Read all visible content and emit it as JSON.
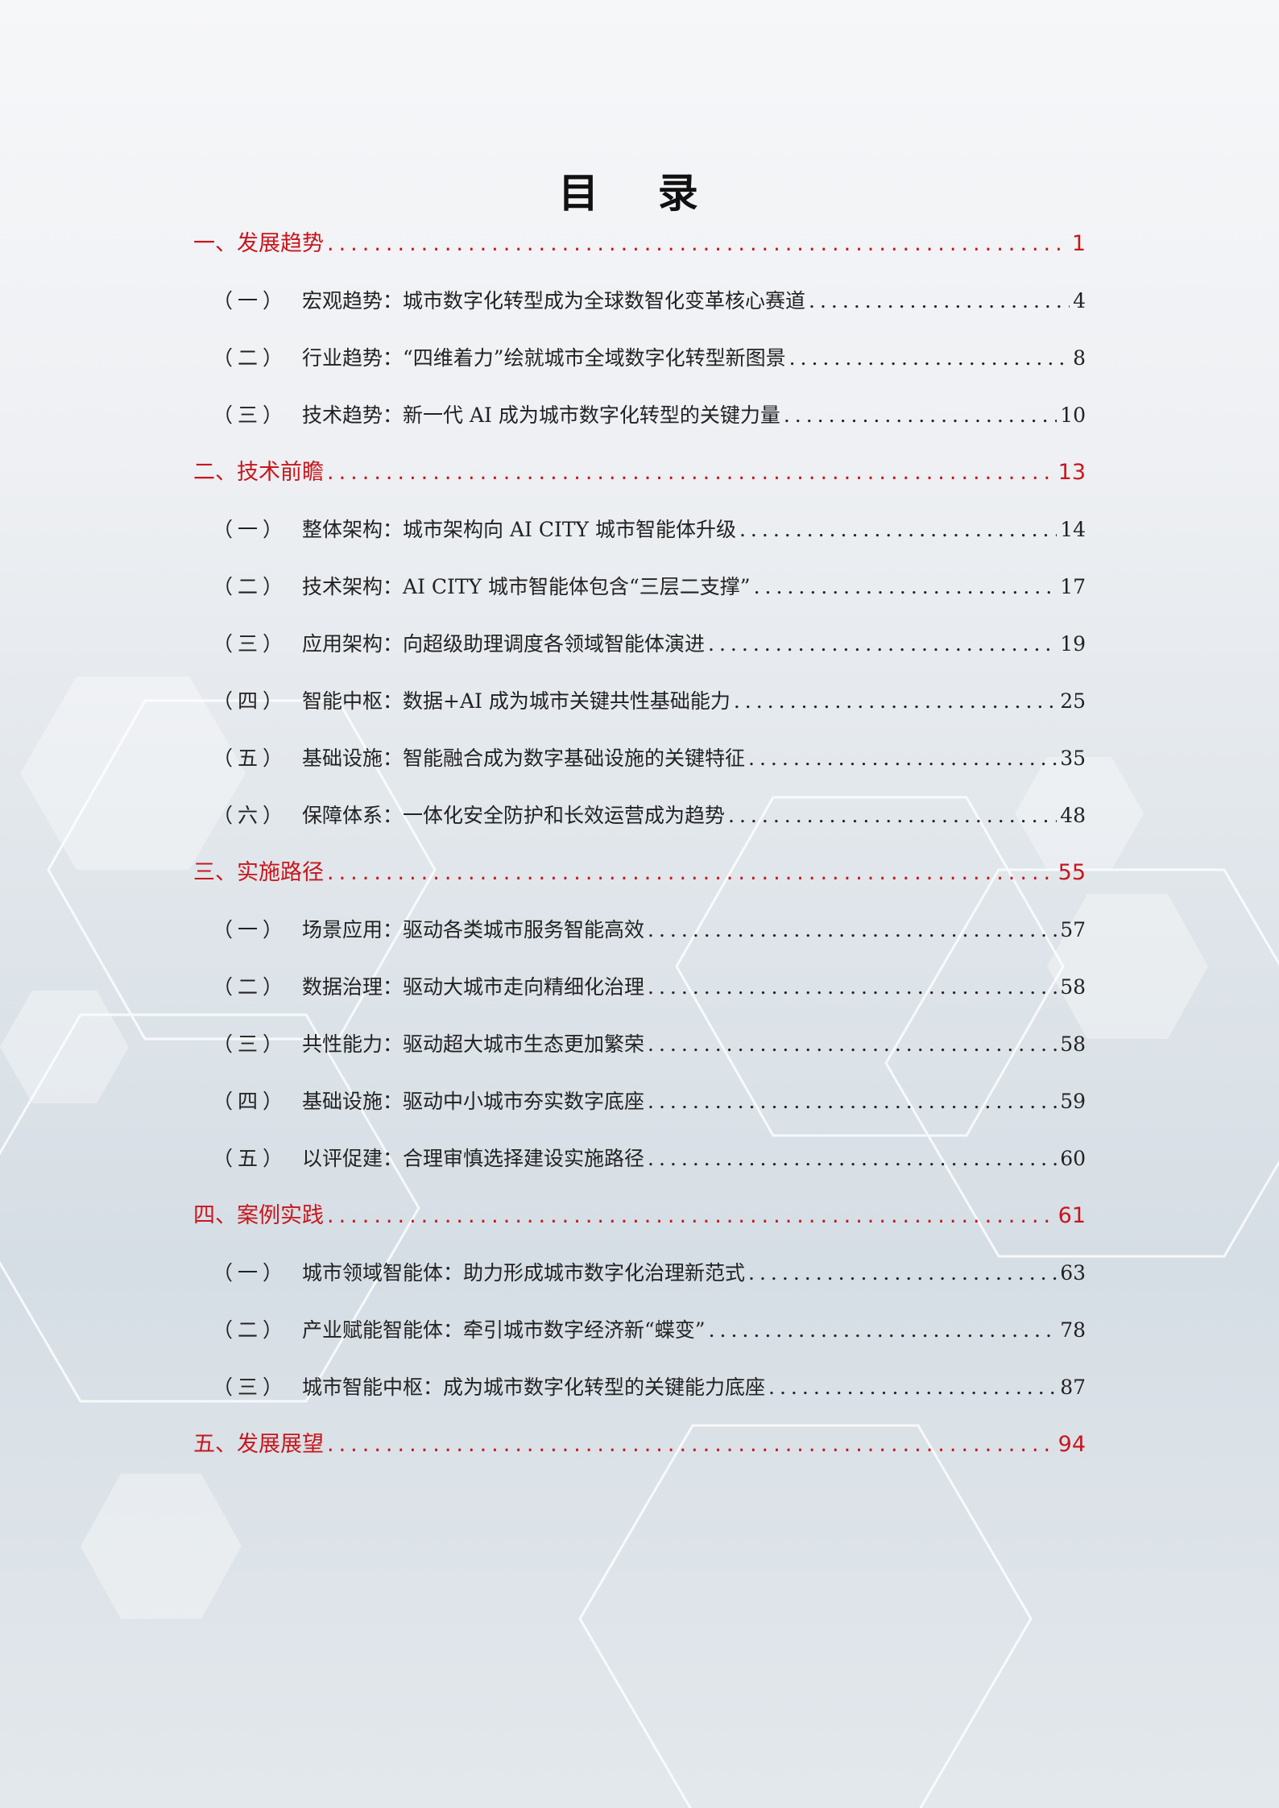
{
  "title": "目 录",
  "entries": [
    {
      "level": 1,
      "label": "一、发展趋势",
      "page": "1"
    },
    {
      "level": 2,
      "prefix": "（一）",
      "label": "宏观趋势：城市数字化转型成为全球数智化变革核心赛道",
      "page": "4"
    },
    {
      "level": 2,
      "prefix": "（二）",
      "label": "行业趋势：“四维着力”绘就城市全域数字化转型新图景",
      "page": "8"
    },
    {
      "level": 2,
      "prefix": "（三）",
      "label": "技术趋势：新一代 AI 成为城市数字化转型的关键力量",
      "page": "10"
    },
    {
      "level": 1,
      "label": "二、技术前瞻",
      "page": "13"
    },
    {
      "level": 2,
      "prefix": "（一）",
      "label": "整体架构：城市架构向 AI CITY 城市智能体升级",
      "page": "14"
    },
    {
      "level": 2,
      "prefix": "（二）",
      "label": "技术架构：AI CITY 城市智能体包含“三层二支撑”",
      "page": "17"
    },
    {
      "level": 2,
      "prefix": "（三）",
      "label": "应用架构：向超级助理调度各领域智能体演进",
      "page": "19"
    },
    {
      "level": 2,
      "prefix": "（四）",
      "label": "智能中枢：数据+AI 成为城市关键共性基础能力",
      "page": "25"
    },
    {
      "level": 2,
      "prefix": "（五）",
      "label": "基础设施：智能融合成为数字基础设施的关键特征",
      "page": "35"
    },
    {
      "level": 2,
      "prefix": "（六）",
      "label": "保障体系：一体化安全防护和长效运营成为趋势",
      "page": "48"
    },
    {
      "level": 1,
      "label": "三、实施路径",
      "page": "55"
    },
    {
      "level": 2,
      "prefix": "（一）",
      "label": "场景应用：驱动各类城市服务智能高效",
      "page": "57"
    },
    {
      "level": 2,
      "prefix": "（二）",
      "label": "数据治理：驱动大城市走向精细化治理",
      "page": "58"
    },
    {
      "level": 2,
      "prefix": "（三）",
      "label": "共性能力：驱动超大城市生态更加繁荣",
      "page": "58"
    },
    {
      "level": 2,
      "prefix": "（四）",
      "label": "基础设施：驱动中小城市夯实数字底座",
      "page": "59"
    },
    {
      "level": 2,
      "prefix": "（五）",
      "label": "以评促建：合理审慎选择建设实施路径",
      "page": "60"
    },
    {
      "level": 1,
      "label": "四、案例实践",
      "page": "61"
    },
    {
      "level": 2,
      "prefix": "（一）",
      "label": "城市领域智能体：助力形成城市数字化治理新范式",
      "page": "63"
    },
    {
      "level": 2,
      "prefix": "（二）",
      "label": "产业赋能智能体：牵引城市数字经济新“蝶变”",
      "page": "78"
    },
    {
      "level": 2,
      "prefix": "（三）",
      "label": "城市智能中枢：成为城市数字化转型的关键能力底座",
      "page": "87"
    },
    {
      "level": 1,
      "label": "五、发展展望",
      "page": "94"
    }
  ],
  "colors": {
    "heading": "#c8161d",
    "text": "#222222"
  }
}
